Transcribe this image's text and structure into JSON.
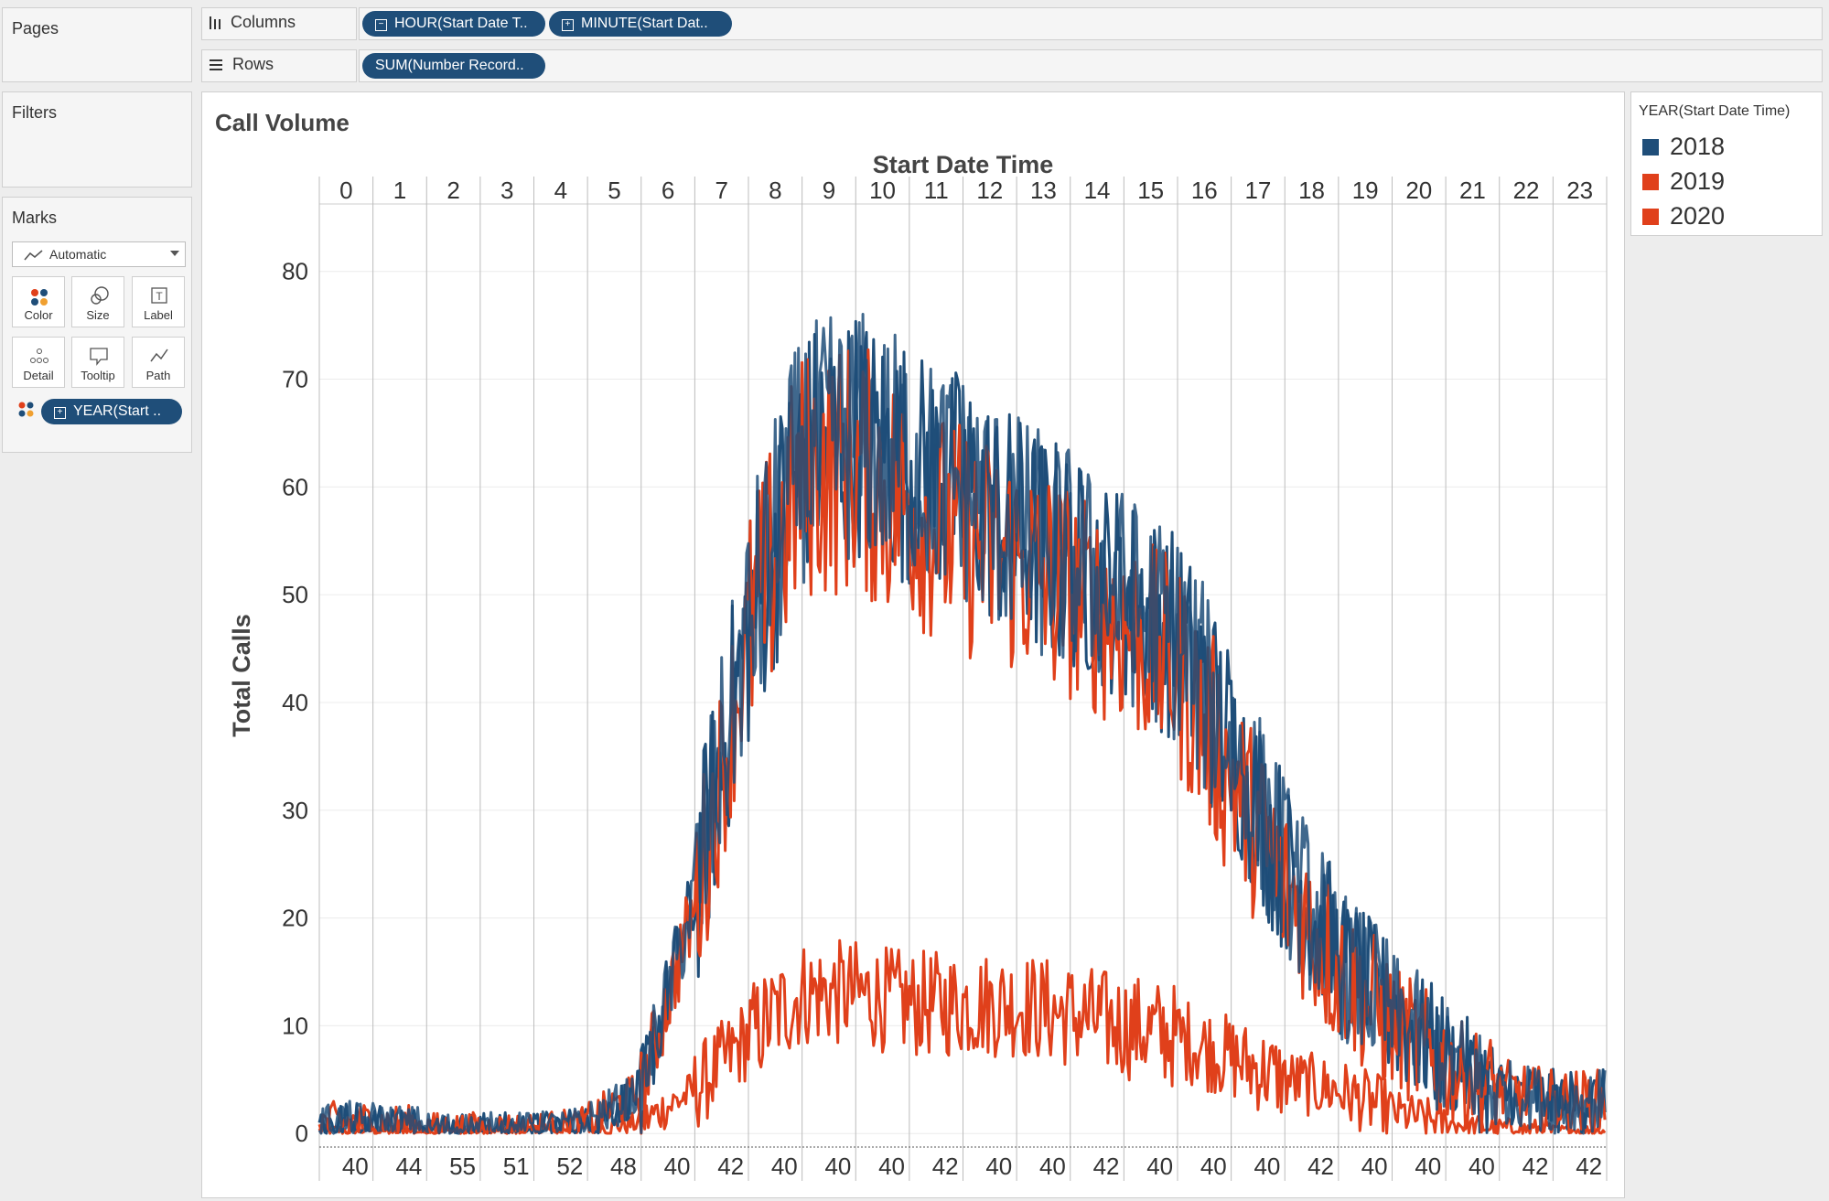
{
  "left_panel": {
    "pages_label": "Pages",
    "filters_label": "Filters",
    "marks_label": "Marks",
    "mark_type": "Automatic",
    "mark_buttons": [
      {
        "label": "Color",
        "icon": "color-dots-icon"
      },
      {
        "label": "Size",
        "icon": "size-circles-icon"
      },
      {
        "label": "Label",
        "icon": "label-t-icon"
      },
      {
        "label": "Detail",
        "icon": "detail-dots-icon"
      },
      {
        "label": "Tooltip",
        "icon": "tooltip-bubble-icon"
      },
      {
        "label": "Path",
        "icon": "path-line-icon"
      }
    ],
    "color_pill": "YEAR(Start .."
  },
  "shelves": {
    "columns_label": "Columns",
    "rows_label": "Rows",
    "column_pills": [
      "HOUR(Start Date T..",
      "MINUTE(Start Dat.."
    ],
    "row_pills": [
      "SUM(Number Record.."
    ]
  },
  "legend": {
    "title": "YEAR(Start Date Time)",
    "items": [
      {
        "label": "2018",
        "color": "#1f4e79"
      },
      {
        "label": "2019",
        "color": "#e0401b"
      },
      {
        "label": "2020",
        "color": "#e0401b"
      }
    ]
  },
  "chart_data": {
    "type": "line",
    "title": "Call Volume",
    "xlabel": "Start Date Time",
    "ylabel": "Total Calls",
    "ylim": [
      -1,
      86
    ],
    "y_ticks": [
      0,
      10,
      20,
      30,
      40,
      50,
      60,
      70,
      80
    ],
    "hours": [
      "0",
      "1",
      "2",
      "3",
      "4",
      "5",
      "6",
      "7",
      "8",
      "9",
      "10",
      "11",
      "12",
      "13",
      "14",
      "15",
      "16",
      "17",
      "18",
      "19",
      "20",
      "21",
      "22",
      "23"
    ],
    "bottom_labels": [
      "40",
      "44",
      "55",
      "51",
      "52",
      "48",
      "40",
      "42",
      "40",
      "40",
      "40",
      "42",
      "40",
      "40",
      "42",
      "40",
      "40",
      "40",
      "42",
      "40",
      "40",
      "40",
      "42",
      "42"
    ],
    "grid": true,
    "legend_position": "right",
    "series": [
      {
        "name": "2018",
        "color": "#1f4e79",
        "hourly_mean": [
          1,
          1,
          0.5,
          0.5,
          0.5,
          1,
          4,
          22,
          47,
          63,
          65,
          62,
          60,
          56,
          53,
          50,
          46,
          36,
          25,
          16,
          11,
          7,
          4,
          3
        ],
        "hourly_range": [
          2,
          2,
          1.5,
          1.5,
          1.5,
          2,
          4,
          10,
          12,
          12,
          12,
          11,
          11,
          11,
          10,
          10,
          10,
          9,
          8,
          7,
          6,
          5,
          3,
          3
        ]
      },
      {
        "name": "2019",
        "color": "#e0401b",
        "hourly_mean": [
          1,
          1,
          0.5,
          0.5,
          0.5,
          1,
          4,
          21,
          46,
          61,
          62,
          58,
          55,
          53,
          50,
          47,
          43,
          33,
          23,
          15,
          10,
          6,
          4,
          3
        ],
        "hourly_range": [
          2,
          2,
          1.5,
          1.5,
          1.5,
          2,
          4,
          9,
          12,
          12,
          12,
          11,
          11,
          11,
          10,
          10,
          10,
          9,
          8,
          7,
          6,
          5,
          3,
          3
        ]
      },
      {
        "name": "2020",
        "color": "#e0401b",
        "hourly_mean": [
          0.3,
          0.3,
          0.2,
          0.2,
          0.3,
          0.5,
          1,
          4,
          9,
          13,
          13,
          12,
          12,
          12,
          11,
          10,
          9,
          7,
          5,
          4,
          2,
          1,
          0.5,
          0.3
        ],
        "hourly_range": [
          0.5,
          0.5,
          0.5,
          0.5,
          0.5,
          1,
          2,
          4,
          5,
          5,
          5,
          5,
          5,
          5,
          5,
          5,
          4,
          4,
          3,
          3,
          2,
          1,
          1,
          0.5
        ]
      }
    ]
  }
}
